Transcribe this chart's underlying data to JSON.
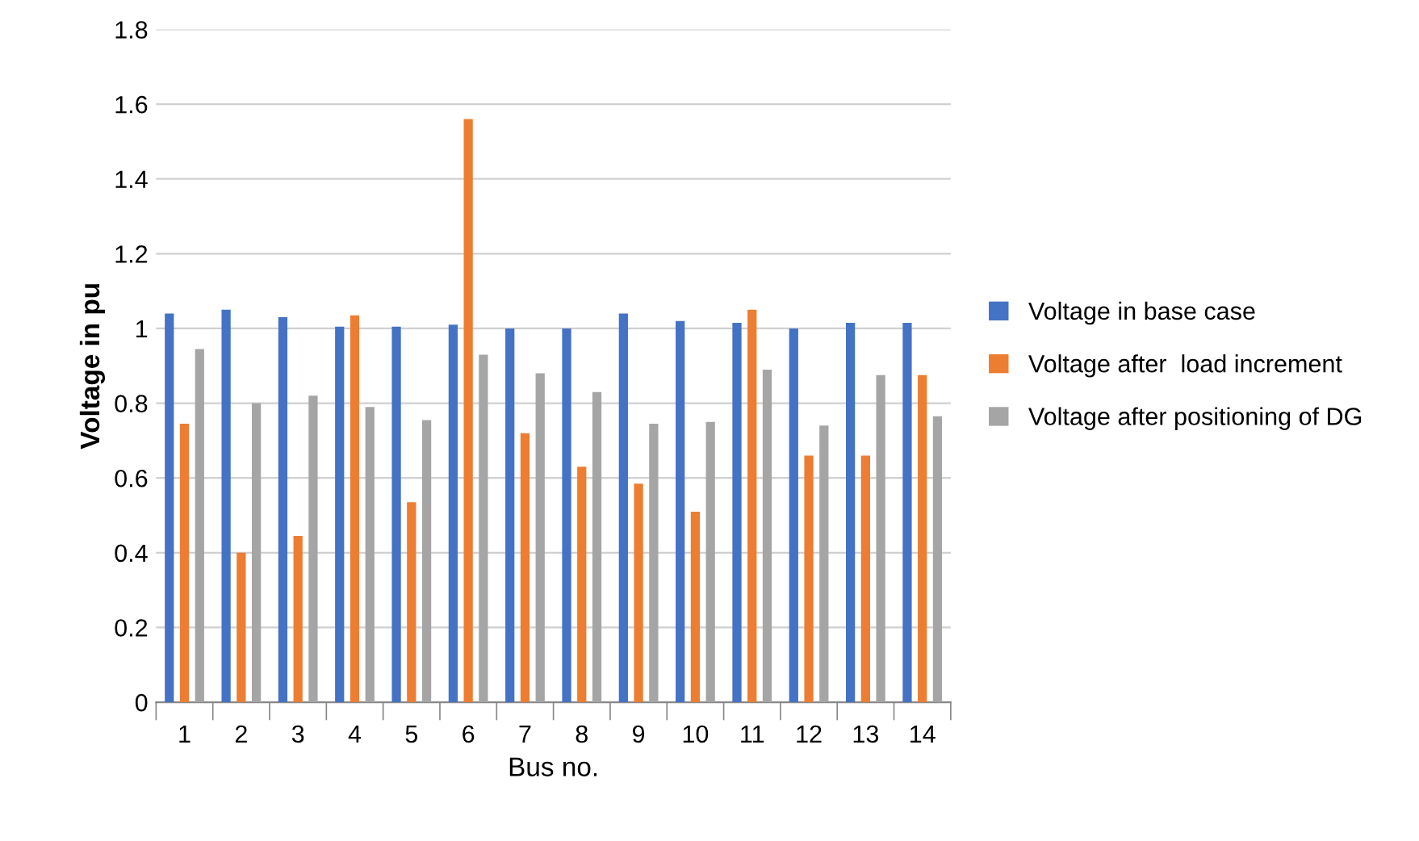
{
  "chart_data": {
    "type": "bar",
    "xlabel": "Bus no.",
    "ylabel": "Voltage in pu",
    "categories": [
      "1",
      "2",
      "3",
      "4",
      "5",
      "6",
      "7",
      "8",
      "9",
      "10",
      "11",
      "12",
      "13",
      "14"
    ],
    "series": [
      {
        "name": "Voltage in base case",
        "color": "#4472c4",
        "values": [
          1.04,
          1.05,
          1.03,
          1.005,
          1.005,
          1.01,
          1.0,
          1.0,
          1.04,
          1.02,
          1.015,
          1.0,
          1.015,
          1.015
        ]
      },
      {
        "name": "Voltage after  load increment",
        "color": "#ed7d31",
        "values": [
          0.745,
          0.4,
          0.445,
          1.035,
          0.535,
          1.56,
          0.72,
          0.63,
          0.585,
          0.51,
          1.05,
          0.66,
          0.66,
          0.875
        ]
      },
      {
        "name": "Voltage after positioning of DG",
        "color": "#a5a5a5",
        "values": [
          0.945,
          0.8,
          0.82,
          0.79,
          0.755,
          0.93,
          0.88,
          0.83,
          0.745,
          0.75,
          0.89,
          0.74,
          0.875,
          0.765
        ]
      }
    ],
    "ylim": [
      0,
      1.8
    ],
    "yticks": [
      0,
      0.2,
      0.4,
      0.6,
      0.8,
      1,
      1.2,
      1.4,
      1.6,
      1.8
    ],
    "grid": "y",
    "legend": "right"
  }
}
